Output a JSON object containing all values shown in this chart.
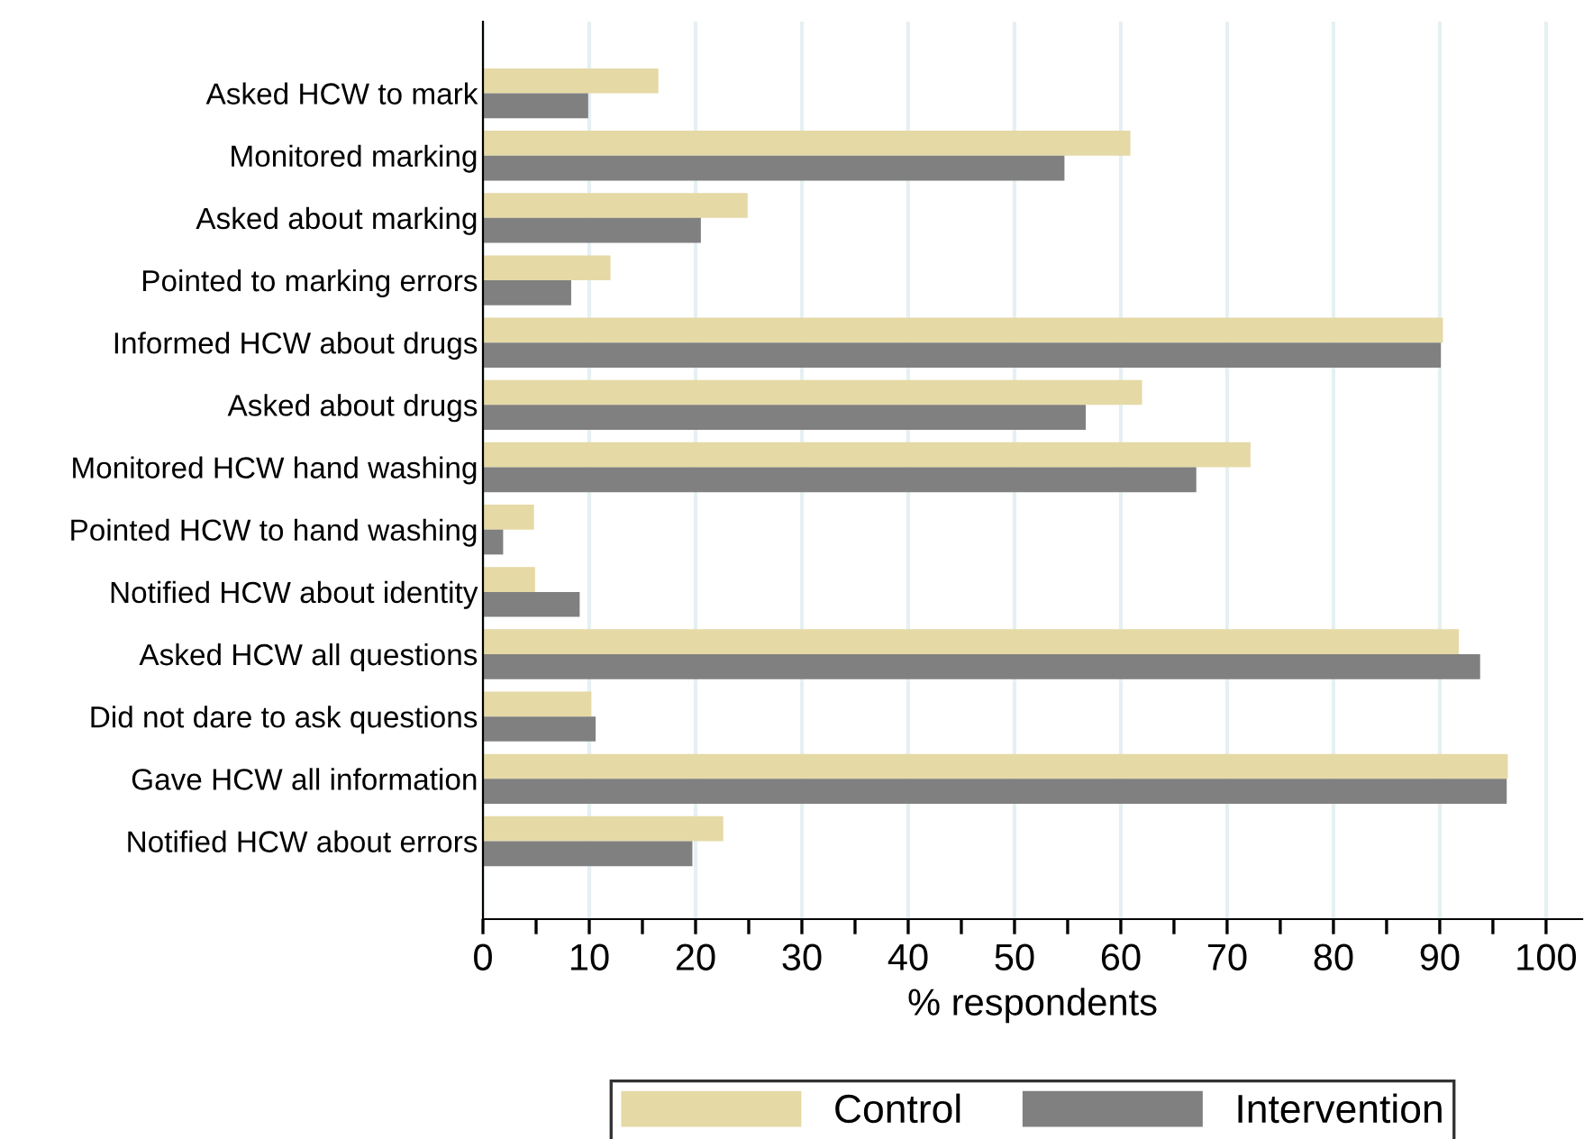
{
  "chart_data": {
    "type": "bar",
    "orientation": "horizontal",
    "xlabel": "% respondents",
    "categories": [
      "Asked HCW to mark",
      "Monitored marking",
      "Asked about marking",
      "Pointed to marking errors",
      "Informed HCW about drugs",
      "Asked about drugs",
      "Monitored HCW hand washing",
      "Pointed HCW to hand washing",
      "Notified HCW about identity",
      "Asked HCW all questions",
      "Did not dare to ask questions",
      "Gave HCW all information",
      "Notified HCW about errors"
    ],
    "series": [
      {
        "name": "Control",
        "color": "#e5d9a5",
        "values": [
          16.5,
          60.9,
          24.9,
          12.0,
          90.3,
          62.0,
          72.2,
          4.8,
          4.9,
          91.8,
          10.2,
          96.4,
          22.6
        ]
      },
      {
        "name": "Intervention",
        "color": "#808080",
        "values": [
          9.9,
          54.7,
          20.5,
          8.3,
          90.1,
          56.7,
          67.1,
          1.9,
          9.1,
          93.8,
          10.6,
          96.3,
          19.7
        ]
      }
    ],
    "xlim": [
      0,
      103.4
    ],
    "xticks": [
      0,
      {
        "value": 5,
        "label": null
      },
      10,
      {
        "value": 15,
        "label": null
      },
      20,
      {
        "value": 25,
        "label": null
      },
      30,
      {
        "value": 35,
        "label": null
      },
      40,
      {
        "value": 45,
        "label": null
      },
      50,
      {
        "value": 55,
        "label": null
      },
      60,
      {
        "value": 65,
        "label": null
      },
      70,
      {
        "value": 75,
        "label": null
      },
      80,
      {
        "value": 85,
        "label": null
      },
      90,
      {
        "value": 95,
        "label": null
      },
      100
    ],
    "grid": "x",
    "legend": "bottom"
  }
}
